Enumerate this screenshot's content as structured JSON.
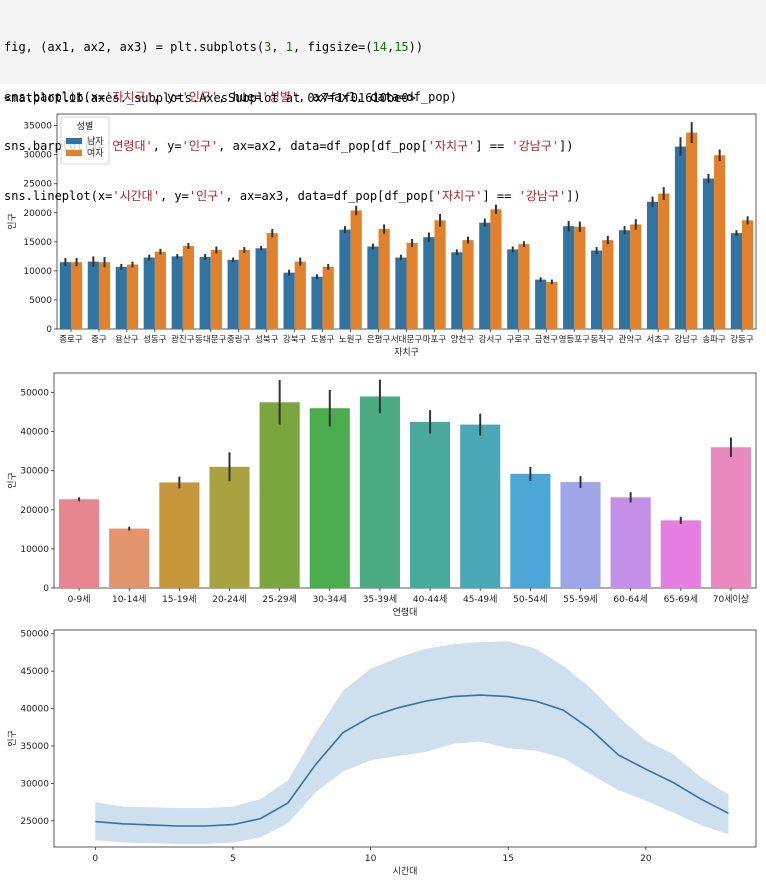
{
  "code_lines": [
    [
      {
        "t": "fig, (ax1, ax2, ax3) = plt.subplots("
      },
      {
        "t": "3",
        "c": "num"
      },
      {
        "t": ", "
      },
      {
        "t": "1",
        "c": "num"
      },
      {
        "t": ", figsize=("
      },
      {
        "t": "14",
        "c": "num"
      },
      {
        "t": ","
      },
      {
        "t": "15",
        "c": "num"
      },
      {
        "t": "))"
      }
    ],
    [
      {
        "t": "sns.barplot(x="
      },
      {
        "t": "'자치구'",
        "c": "str"
      },
      {
        "t": ", y="
      },
      {
        "t": "'인구'",
        "c": "str"
      },
      {
        "t": ", hue="
      },
      {
        "t": "'성별'",
        "c": "str"
      },
      {
        "t": ", ax=ax1, data=df_pop)"
      }
    ],
    [
      {
        "t": "sns.barplot(x="
      },
      {
        "t": "'연령대'",
        "c": "str"
      },
      {
        "t": ", y="
      },
      {
        "t": "'인구'",
        "c": "str"
      },
      {
        "t": ", ax=ax2, data=df_pop[df_pop["
      },
      {
        "t": "'자치구'",
        "c": "str"
      },
      {
        "t": "] == "
      },
      {
        "t": "'강남구'",
        "c": "str"
      },
      {
        "t": "])"
      }
    ],
    [
      {
        "t": "sns.lineplot(x="
      },
      {
        "t": "'시간대'",
        "c": "str"
      },
      {
        "t": ", y="
      },
      {
        "t": "'인구'",
        "c": "str"
      },
      {
        "t": ", ax=ax3, data=df_pop[df_pop["
      },
      {
        "t": "'자치구'",
        "c": "str"
      },
      {
        "t": "] == "
      },
      {
        "t": "'강남구'",
        "c": "str"
      },
      {
        "t": "])"
      }
    ]
  ],
  "output_text": "<matplotlib.axes._subplots.AxesSubplot at 0x7f1f01610be0>",
  "colors": {
    "male": "#3274a1",
    "female": "#e1812c",
    "line": "#3274a1",
    "band": "#c9dcec",
    "err": "#333333"
  },
  "chart_data": [
    {
      "type": "bar",
      "xlabel": "자치구",
      "ylabel": "인구",
      "ylim": [
        0,
        37000
      ],
      "yticks": [
        0,
        5000,
        10000,
        15000,
        20000,
        25000,
        30000,
        35000
      ],
      "legend": {
        "title": "성별",
        "position": "top-left"
      },
      "categories": [
        "종로구",
        "중구",
        "용산구",
        "성동구",
        "광진구",
        "동대문구",
        "중랑구",
        "성북구",
        "강북구",
        "도봉구",
        "노원구",
        "은평구",
        "서대문구",
        "마포구",
        "양천구",
        "강서구",
        "구로구",
        "금천구",
        "영등포구",
        "동작구",
        "관악구",
        "서초구",
        "강남구",
        "송파구",
        "강동구"
      ],
      "series": [
        {
          "name": "남자",
          "values": [
            11500,
            11600,
            10700,
            12300,
            12500,
            12400,
            11900,
            13900,
            9700,
            9000,
            17100,
            14200,
            12300,
            15800,
            13200,
            18300,
            13700,
            8500,
            17700,
            13500,
            17000,
            21900,
            31400,
            25900,
            16500
          ],
          "err": [
            700,
            900,
            500,
            500,
            400,
            500,
            400,
            400,
            500,
            400,
            600,
            500,
            500,
            800,
            500,
            700,
            500,
            400,
            900,
            600,
            700,
            900,
            1600,
            800,
            500
          ]
        },
        {
          "name": "여자",
          "values": [
            11500,
            11500,
            11100,
            13300,
            14300,
            13600,
            13600,
            16500,
            11600,
            10700,
            20400,
            17200,
            14800,
            18700,
            15300,
            20600,
            14600,
            8100,
            17600,
            15300,
            18000,
            23300,
            33800,
            29900,
            18700
          ],
          "err": [
            700,
            900,
            500,
            500,
            500,
            600,
            500,
            700,
            700,
            500,
            800,
            800,
            700,
            1100,
            600,
            800,
            500,
            400,
            900,
            700,
            900,
            1100,
            1800,
            1000,
            700
          ]
        }
      ]
    },
    {
      "type": "bar",
      "xlabel": "연령대",
      "ylabel": "인구",
      "ylim": [
        0,
        55000
      ],
      "yticks": [
        0,
        10000,
        20000,
        30000,
        40000,
        50000
      ],
      "categories": [
        "0-9세",
        "10-14세",
        "15-19세",
        "20-24세",
        "25-29세",
        "30-34세",
        "35-39세",
        "40-44세",
        "45-49세",
        "50-54세",
        "55-59세",
        "60-64세",
        "65-69세",
        "70세이상"
      ],
      "values": [
        22700,
        15200,
        27000,
        31000,
        47500,
        46000,
        49000,
        42500,
        41800,
        29200,
        27100,
        23200,
        17300,
        36000
      ],
      "err": [
        500,
        500,
        1500,
        3700,
        5700,
        4700,
        4300,
        3000,
        2800,
        1800,
        1500,
        1300,
        900,
        2500
      ],
      "colors": [
        "#e8868f",
        "#e2946d",
        "#c7963b",
        "#a8a23f",
        "#7ba63e",
        "#4bae4e",
        "#4aab83",
        "#49a99d",
        "#4ba8b7",
        "#4ca7d8",
        "#9fa7e8",
        "#c48fe6",
        "#e47ee0",
        "#e989c0"
      ]
    },
    {
      "type": "line",
      "xlabel": "시간대",
      "ylabel": "인구",
      "xlim": [
        -1.5,
        24
      ],
      "ylim": [
        21500,
        50500
      ],
      "xticks": [
        0,
        5,
        10,
        15,
        20
      ],
      "yticks": [
        25000,
        30000,
        35000,
        40000,
        45000,
        50000
      ],
      "x": [
        0,
        1,
        2,
        3,
        4,
        5,
        6,
        7,
        8,
        9,
        10,
        11,
        12,
        13,
        14,
        15,
        16,
        17,
        18,
        19,
        20,
        21,
        22,
        23
      ],
      "y": [
        24900,
        24600,
        24450,
        24300,
        24300,
        24500,
        25300,
        27400,
        32500,
        36800,
        38900,
        40100,
        41000,
        41600,
        41800,
        41600,
        41000,
        39800,
        37200,
        33800,
        31900,
        30100,
        27900,
        26000
      ],
      "ci_low": [
        22400,
        22100,
        22000,
        21900,
        21900,
        22100,
        22800,
        24700,
        28800,
        31600,
        33100,
        33700,
        34200,
        35300,
        35600,
        34700,
        34400,
        33400,
        31200,
        29100,
        27700,
        26100,
        24400,
        23200
      ],
      "ci_high": [
        27500,
        26900,
        26800,
        26700,
        26700,
        26900,
        27900,
        30400,
        36700,
        42400,
        45300,
        46800,
        48000,
        48600,
        48900,
        49000,
        48000,
        45700,
        42700,
        38900,
        35700,
        33900,
        30800,
        28500
      ]
    }
  ]
}
